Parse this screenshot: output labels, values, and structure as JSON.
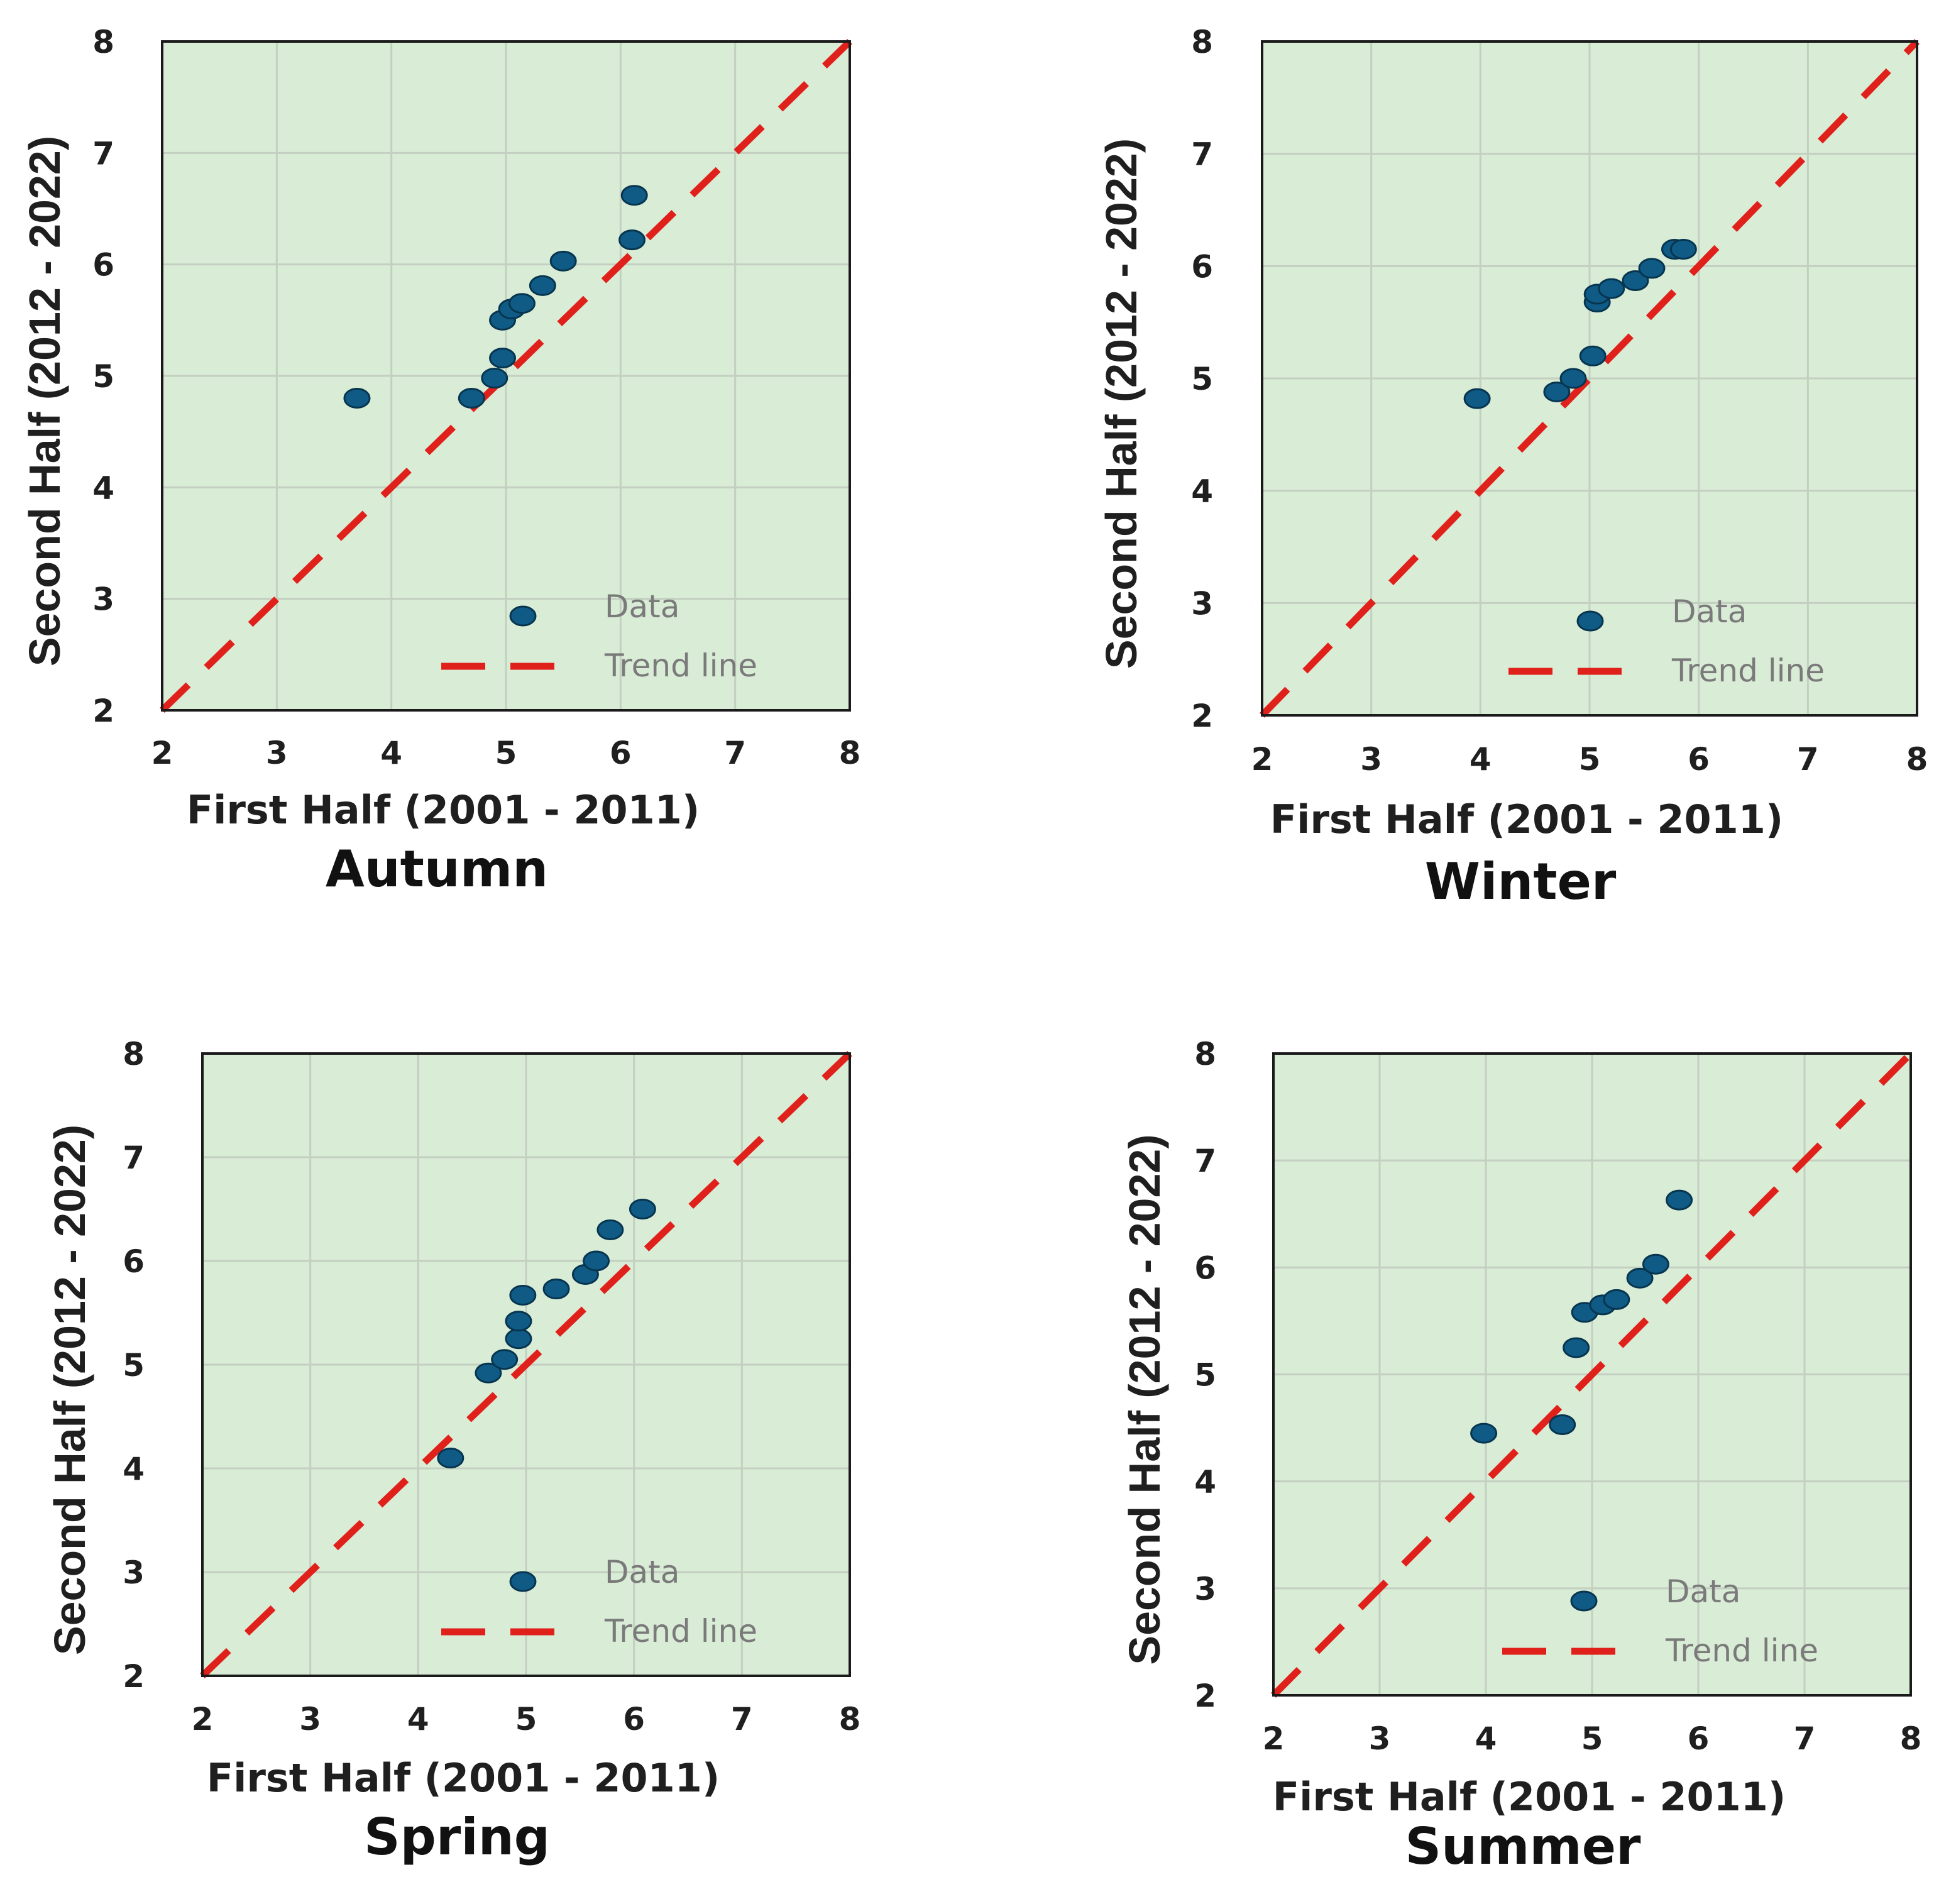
{
  "colors": {
    "plot_background": "#d9ecd6",
    "grid": "#c3cfc0",
    "frame": "#1a1a1a",
    "marker_fill": "#0f5b85",
    "marker_stroke": "#07354f",
    "trend_line": "#e0211b"
  },
  "legend": {
    "data_label": "Data",
    "trend_label": "Trend line"
  },
  "chart_data": [
    {
      "type": "scatter",
      "title": "Autumn",
      "xlabel": "First Half (2001 - 2011)",
      "ylabel": "Second Half (2012 - 2022)",
      "xlim": [
        2,
        8
      ],
      "ylim": [
        2,
        8
      ],
      "xticks": [
        "2",
        "3",
        "4",
        "5",
        "6",
        "7",
        "8"
      ],
      "yticks": [
        "2",
        "3",
        "4",
        "5",
        "6",
        "7",
        "8"
      ],
      "legend_position": "bottom-right",
      "grid": true,
      "trend_line": [
        [
          2,
          2
        ],
        [
          8,
          8
        ]
      ],
      "points": [
        {
          "x": 3.7,
          "y": 4.8
        },
        {
          "x": 4.7,
          "y": 4.8
        },
        {
          "x": 4.9,
          "y": 4.98
        },
        {
          "x": 4.97,
          "y": 5.16
        },
        {
          "x": 4.97,
          "y": 5.5
        },
        {
          "x": 5.05,
          "y": 5.6
        },
        {
          "x": 5.14,
          "y": 5.65
        },
        {
          "x": 5.32,
          "y": 5.81
        },
        {
          "x": 5.5,
          "y": 6.03
        },
        {
          "x": 6.1,
          "y": 6.22
        },
        {
          "x": 6.12,
          "y": 6.62
        }
      ]
    },
    {
      "type": "scatter",
      "title": "Winter",
      "xlabel": "First Half (2001 - 2011)",
      "ylabel": "Second Half (2012 - 2022)",
      "xlim": [
        2,
        8
      ],
      "ylim": [
        2,
        8
      ],
      "xticks": [
        "2",
        "3",
        "4",
        "5",
        "6",
        "7",
        "8"
      ],
      "yticks": [
        "2",
        "3",
        "4",
        "5",
        "6",
        "7",
        "8"
      ],
      "legend_position": "bottom-right",
      "grid": true,
      "trend_line": [
        [
          2,
          2
        ],
        [
          8,
          8
        ]
      ],
      "points": [
        {
          "x": 3.97,
          "y": 4.82
        },
        {
          "x": 4.7,
          "y": 4.88
        },
        {
          "x": 4.85,
          "y": 5.0
        },
        {
          "x": 5.03,
          "y": 5.2
        },
        {
          "x": 5.07,
          "y": 5.68
        },
        {
          "x": 5.07,
          "y": 5.75
        },
        {
          "x": 5.2,
          "y": 5.8
        },
        {
          "x": 5.42,
          "y": 5.87
        },
        {
          "x": 5.57,
          "y": 5.98
        },
        {
          "x": 5.78,
          "y": 6.15
        },
        {
          "x": 5.86,
          "y": 6.15
        }
      ]
    },
    {
      "type": "scatter",
      "title": "Spring",
      "xlabel": "First Half (2001 - 2011)",
      "ylabel": "Second Half (2012 - 2022)",
      "xlim": [
        2,
        8
      ],
      "ylim": [
        2,
        8
      ],
      "xticks": [
        "2",
        "3",
        "4",
        "5",
        "6",
        "7",
        "8"
      ],
      "yticks": [
        "2",
        "3",
        "4",
        "5",
        "6",
        "7",
        "8"
      ],
      "legend_position": "bottom-right",
      "grid": true,
      "trend_line": [
        [
          2,
          2
        ],
        [
          8,
          8
        ]
      ],
      "points": [
        {
          "x": 4.3,
          "y": 4.1
        },
        {
          "x": 4.65,
          "y": 4.92
        },
        {
          "x": 4.8,
          "y": 5.05
        },
        {
          "x": 4.93,
          "y": 5.25
        },
        {
          "x": 4.93,
          "y": 5.42
        },
        {
          "x": 4.97,
          "y": 5.67
        },
        {
          "x": 5.28,
          "y": 5.73
        },
        {
          "x": 5.55,
          "y": 5.87
        },
        {
          "x": 5.65,
          "y": 6.0
        },
        {
          "x": 5.78,
          "y": 6.3
        },
        {
          "x": 6.08,
          "y": 6.5
        }
      ]
    },
    {
      "type": "scatter",
      "title": "Summer",
      "xlabel": "First Half (2001 - 2011)",
      "ylabel": "Second Half (2012 - 2022)",
      "xlim": [
        2,
        8
      ],
      "ylim": [
        2,
        8
      ],
      "xticks": [
        "2",
        "3",
        "4",
        "5",
        "6",
        "7",
        "8"
      ],
      "yticks": [
        "2",
        "3",
        "4",
        "5",
        "6",
        "7",
        "8"
      ],
      "legend_position": "bottom-right",
      "grid": true,
      "trend_line": [
        [
          2,
          2
        ],
        [
          8,
          8
        ]
      ],
      "points": [
        {
          "x": 3.98,
          "y": 4.45
        },
        {
          "x": 4.72,
          "y": 4.53
        },
        {
          "x": 4.85,
          "y": 5.25
        },
        {
          "x": 4.93,
          "y": 5.58
        },
        {
          "x": 5.1,
          "y": 5.65
        },
        {
          "x": 5.23,
          "y": 5.7
        },
        {
          "x": 5.45,
          "y": 5.9
        },
        {
          "x": 5.6,
          "y": 6.03
        },
        {
          "x": 5.82,
          "y": 6.63
        }
      ]
    }
  ]
}
